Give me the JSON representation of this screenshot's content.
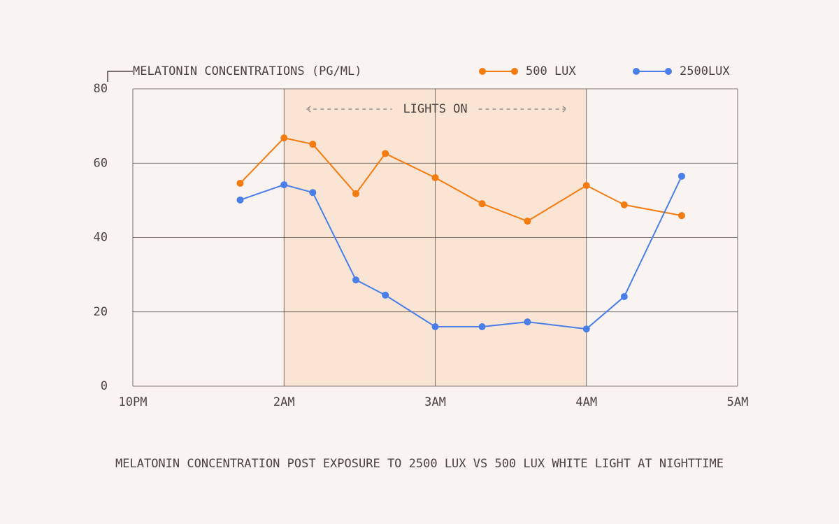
{
  "chart_data": {
    "type": "line",
    "y_label": "MELATONIN CONCENTRATIONS (PG/ML)",
    "caption": "MELATONIN CONCENTRATION POST EXPOSURE TO 2500 LUX VS 500 LUX WHITE LIGHT AT NIGHTTIME",
    "x": [
      0.71,
      1.0,
      1.19,
      1.475,
      1.67,
      2.0,
      2.31,
      2.61,
      3.0,
      3.25,
      3.63
    ],
    "series": [
      {
        "name": "500 LUX",
        "color": "#f47b10",
        "values": [
          54.6,
          66.8,
          65.1,
          51.8,
          62.6,
          56.1,
          49.1,
          44.4,
          54,
          48.8,
          45.9
        ]
      },
      {
        "name": "2500LUX",
        "color": "#4a7ee8",
        "values": [
          50.1,
          54.2,
          52.1,
          28.6,
          24.5,
          16,
          16,
          17.3,
          15.4,
          24.1,
          56.5
        ]
      }
    ],
    "xlim": [
      0,
      4
    ],
    "xticks": [
      {
        "value": 0,
        "label": "10PM"
      },
      {
        "value": 1,
        "label": "2AM"
      },
      {
        "value": 2,
        "label": "3AM"
      },
      {
        "value": 3,
        "label": "4AM"
      },
      {
        "value": 4,
        "label": "5AM"
      }
    ],
    "ylim": [
      0,
      80
    ],
    "yticks": [
      0,
      20,
      40,
      60,
      80
    ],
    "grid": true,
    "highlight": {
      "x": [
        1,
        3
      ],
      "label": "LIGHTS ON",
      "color": "#fae4d4"
    }
  }
}
